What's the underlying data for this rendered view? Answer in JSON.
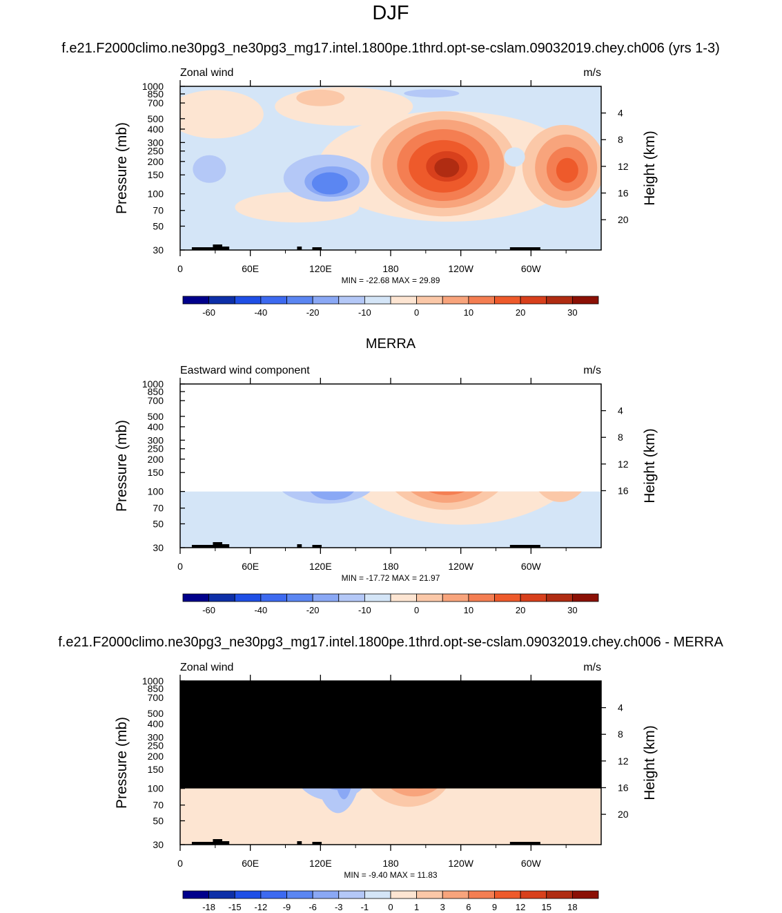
{
  "figure": {
    "title": "DJF",
    "case_title": "f.e21.F2000climo.ne30pg3_ne30pg3_mg17.intel.1800pe.1thrd.opt-se-cslam.09032019.chey.ch006 (yrs 1-3)",
    "obs_title": "MERRA",
    "diff_title": "f.e21.F2000climo.ne30pg3_ne30pg3_mg17.intel.1800pe.1thrd.opt-se-cslam.09032019.chey.ch006 - MERRA"
  },
  "colors": {
    "blues": [
      "#00008b",
      "#0d2fa8",
      "#1f4fe6",
      "#3d6af0",
      "#5b86f2",
      "#8aa8f5",
      "#b4c8f7",
      "#d4e5f7"
    ],
    "reds": [
      "#fde5d2",
      "#fbc8a8",
      "#f8a47c",
      "#f47e52",
      "#ee5a2b",
      "#d8401c",
      "#b02c12",
      "#8b1005"
    ],
    "topography": "#000000",
    "masked": "#000000"
  },
  "chart_data": [
    {
      "type": "contour",
      "panel": "model",
      "left_label": "Zonal wind",
      "units": "m/s",
      "ylabel": "Pressure (mb)",
      "y2label": "Height (km)",
      "y_ticks": [
        "30",
        "50",
        "70",
        "100",
        "150",
        "200",
        "250",
        "300",
        "400",
        "500",
        "700",
        "850",
        "1000"
      ],
      "y2_ticks": [
        "20",
        "16",
        "12",
        "8",
        "4"
      ],
      "x_ticks": [
        "0",
        "60E",
        "120E",
        "180",
        "120W",
        "60W"
      ],
      "stats": "MIN = -22.68  MAX =  29.89",
      "levels": [
        "-60",
        "-40",
        "-20",
        "-10",
        "0",
        "10",
        "20",
        "30"
      ],
      "min": -22.68,
      "max": 29.89
    },
    {
      "type": "contour",
      "panel": "obs",
      "left_label": "Eastward wind component",
      "units": "m/s",
      "ylabel": "Pressure (mb)",
      "y2label": "Height (km)",
      "y_ticks": [
        "30",
        "50",
        "70",
        "100",
        "150",
        "200",
        "250",
        "300",
        "400",
        "500",
        "700",
        "850",
        "1000"
      ],
      "y2_ticks": [
        "16",
        "12",
        "8",
        "4"
      ],
      "x_ticks": [
        "0",
        "60E",
        "120E",
        "180",
        "120W",
        "60W"
      ],
      "stats": "MIN = -17.72  MAX =  21.97",
      "levels": [
        "-60",
        "-40",
        "-20",
        "-10",
        "0",
        "10",
        "20",
        "30"
      ],
      "min": -17.72,
      "max": 21.97
    },
    {
      "type": "contour",
      "panel": "diff",
      "left_label": "Zonal wind",
      "units": "m/s",
      "ylabel": "Pressure (mb)",
      "y2label": "Height (km)",
      "y_ticks": [
        "30",
        "50",
        "70",
        "100",
        "150",
        "200",
        "250",
        "300",
        "400",
        "500",
        "700",
        "850",
        "1000"
      ],
      "y2_ticks": [
        "20",
        "16",
        "12",
        "8",
        "4"
      ],
      "x_ticks": [
        "0",
        "60E",
        "120E",
        "180",
        "120W",
        "60W"
      ],
      "stats": "MIN =  -9.40  MAX =  11.83",
      "levels": [
        "-18",
        "-15",
        "-12",
        "-9",
        "-6",
        "-3",
        "-1",
        "0",
        "1",
        "3",
        "6",
        "9",
        "12",
        "15",
        "18"
      ],
      "min": -9.4,
      "max": 11.83
    }
  ]
}
